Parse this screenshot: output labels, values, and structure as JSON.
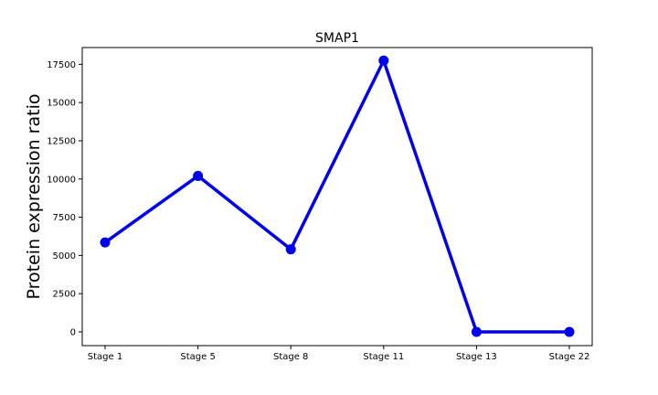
{
  "chart_data": {
    "type": "line",
    "title": "SMAP1",
    "xlabel": "",
    "ylabel": "Protein expression ratio",
    "categories": [
      "Stage 1",
      "Stage 5",
      "Stage 8",
      "Stage 11",
      "Stage 13",
      "Stage 22"
    ],
    "series": [
      {
        "values": [
          5850,
          10200,
          5400,
          17750,
          0,
          0
        ],
        "color": "#0000ee"
      }
    ],
    "y_ticks": [
      0,
      2500,
      5000,
      7500,
      10000,
      12500,
      15000,
      17500
    ],
    "ylim": [
      -900,
      18600
    ],
    "grid": false,
    "legend": "none"
  }
}
